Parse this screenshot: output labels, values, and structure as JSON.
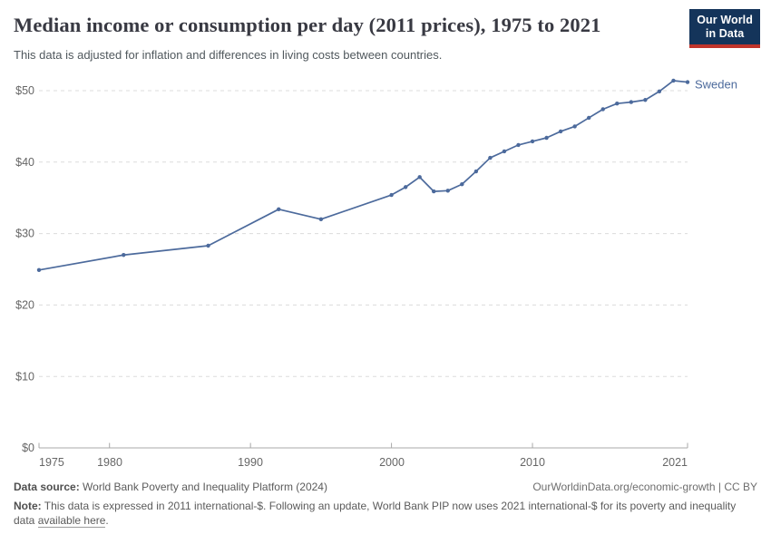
{
  "header": {
    "title": "Median income or consumption per day (2011 prices), 1975 to 2021",
    "subtitle": "This data is adjusted for inflation and differences in living costs between countries.",
    "logo": {
      "line1": "Our World",
      "line2": "in Data",
      "bg_color": "#14345a",
      "accent_color": "#c0342b"
    }
  },
  "chart_data": {
    "type": "line",
    "title": "Median income or consumption per day (2011 prices), 1975 to 2021",
    "subtitle": "This data is adjusted for inflation and differences in living costs between countries.",
    "xlabel": "",
    "ylabel": "",
    "xlim": [
      1975,
      2021
    ],
    "ylim": [
      0,
      50
    ],
    "grid": true,
    "gridline_style": "dashed",
    "x_ticks": [
      1975,
      1980,
      1990,
      2000,
      2010,
      2021
    ],
    "y_ticks": [
      "$0",
      "$10",
      "$20",
      "$30",
      "$40",
      "$50"
    ],
    "y_tick_values": [
      0,
      10,
      20,
      30,
      40,
      50
    ],
    "legend_position": "end-of-line-label",
    "series": [
      {
        "name": "Sweden",
        "color": "#4c6a9c",
        "x": [
          1975,
          1981,
          1987,
          1992,
          1995,
          2000,
          2001,
          2002,
          2003,
          2004,
          2005,
          2006,
          2007,
          2008,
          2009,
          2010,
          2011,
          2012,
          2013,
          2014,
          2015,
          2016,
          2017,
          2018,
          2019,
          2020,
          2021
        ],
        "values": [
          24.9,
          27.0,
          28.3,
          33.4,
          32.0,
          35.4,
          36.5,
          37.9,
          35.9,
          36.0,
          36.9,
          38.7,
          40.6,
          41.5,
          42.4,
          42.9,
          43.4,
          44.3,
          45.0,
          46.2,
          47.4,
          48.2,
          48.4,
          48.7,
          49.9,
          51.4,
          51.2
        ]
      }
    ]
  },
  "footer": {
    "source_label": "Data source:",
    "source_text": "World Bank Poverty and Inequality Platform (2024)",
    "credit": "OurWorldinData.org/economic-growth | CC BY",
    "note_label": "Note:",
    "note_text": "This data is expressed in 2011 international-$. Following an update, World Bank PIP now uses 2021 international-$ for its poverty and inequality data",
    "note_link": "available here",
    "note_period": "."
  }
}
